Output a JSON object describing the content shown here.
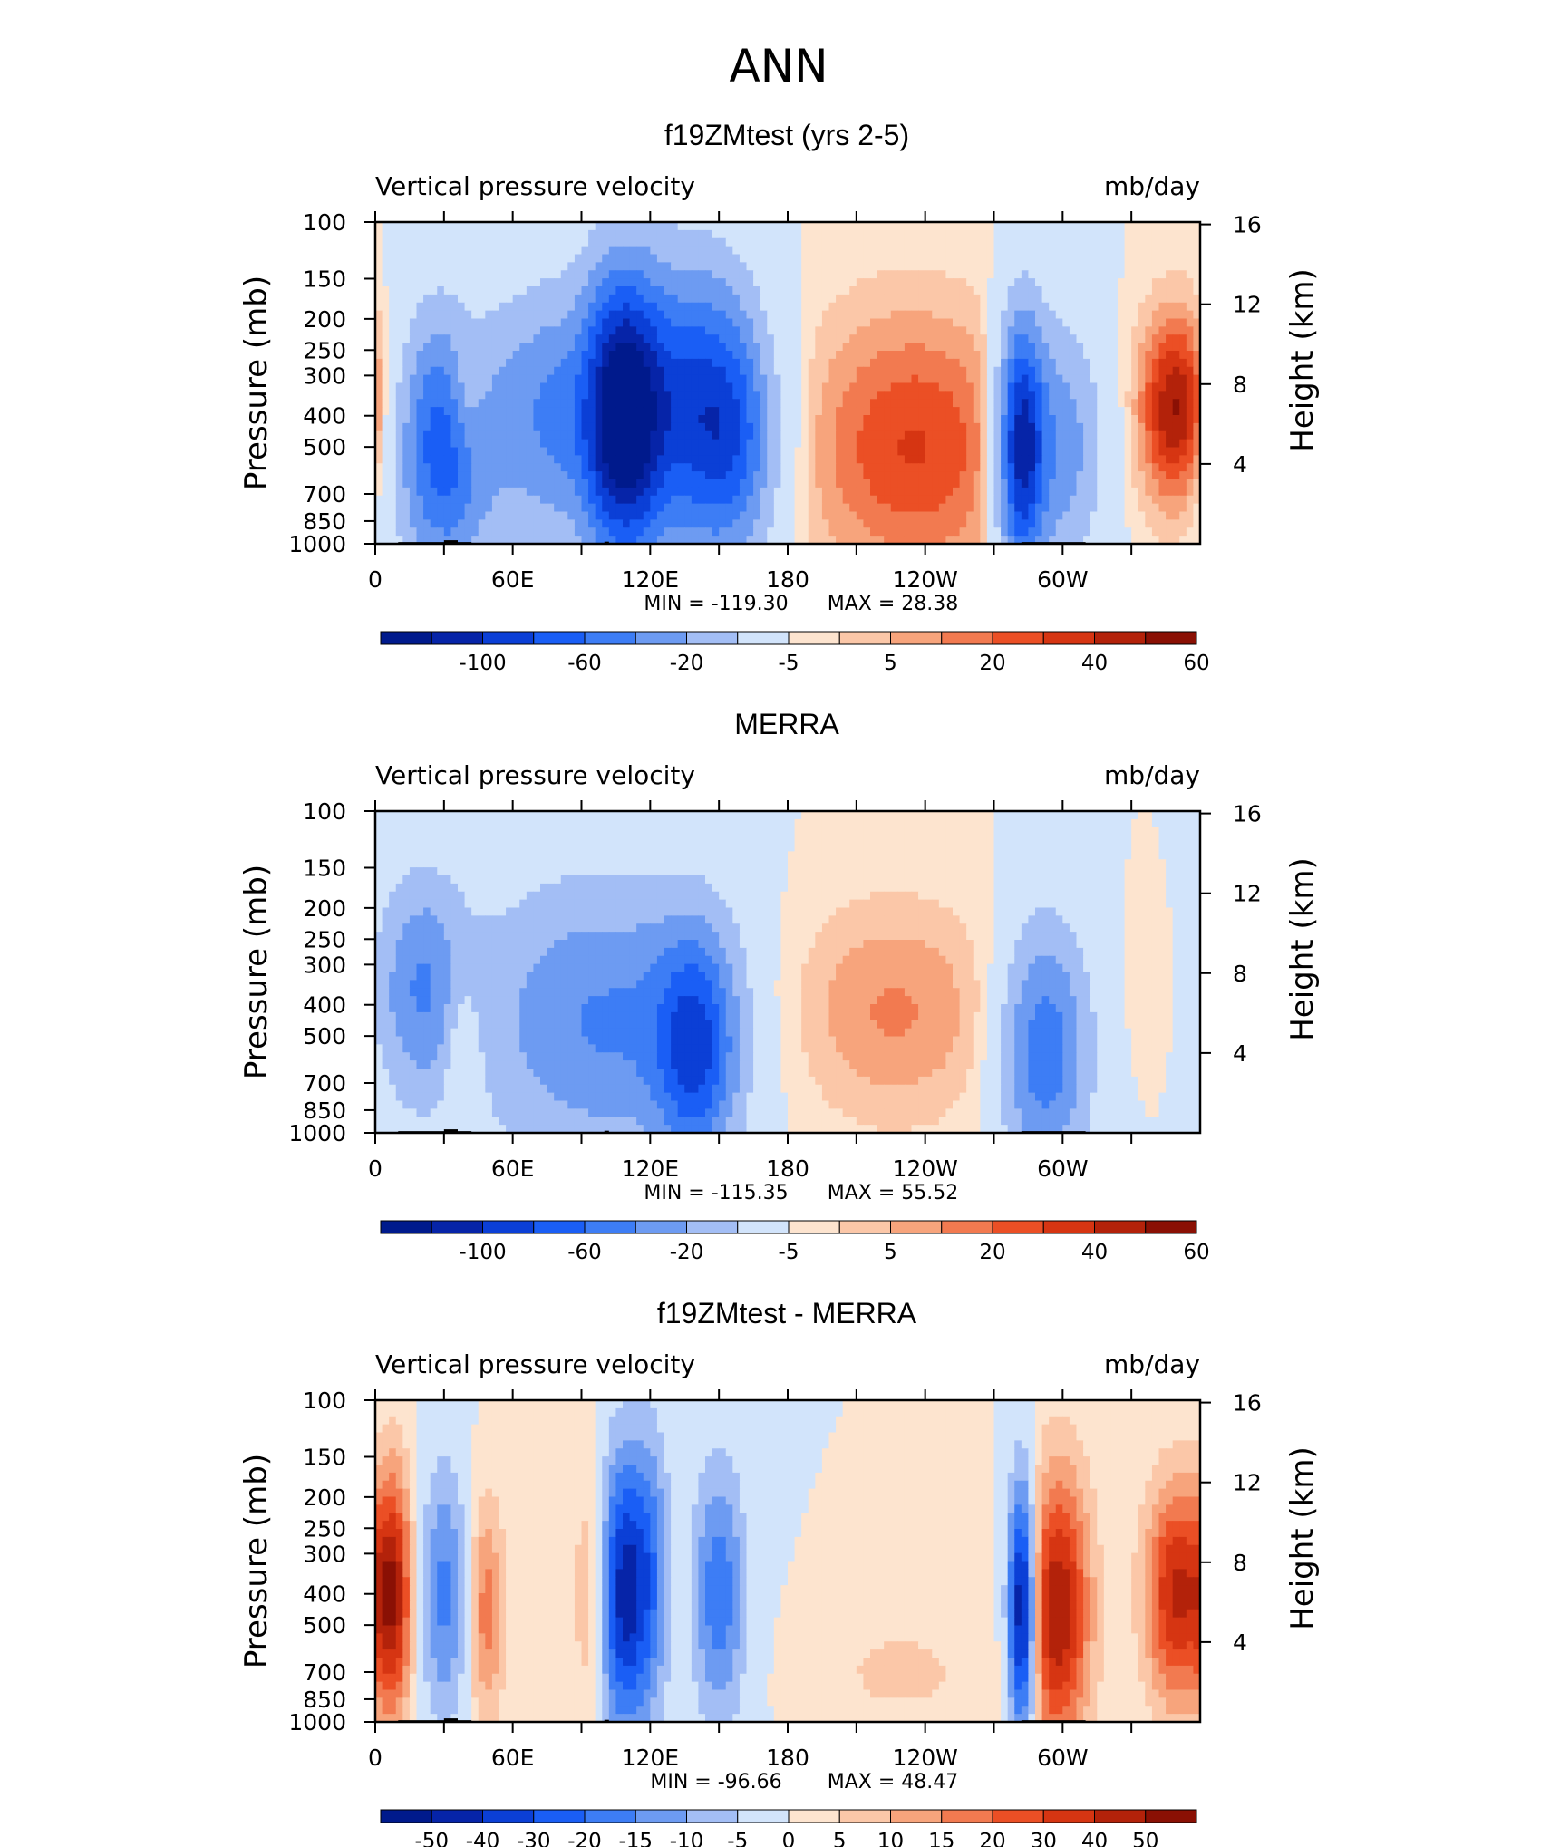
{
  "figure_title": "ANN",
  "chart_data": [
    {
      "type": "heatmap",
      "title": "f19ZMtest (yrs 2-5)",
      "subtitle_left": "Vertical pressure velocity",
      "subtitle_right": "mb/day",
      "ylabel": "Pressure (mb)",
      "ylabel_right": "Height (km)",
      "x_tick_labels": [
        "0",
        "60E",
        "120E",
        "180",
        "120W",
        "60W"
      ],
      "y_tick_labels": [
        "100",
        "150",
        "200",
        "250",
        "300",
        "400",
        "500",
        "700",
        "850",
        "1000"
      ],
      "y_right_tick_labels": [
        "16",
        "12",
        "8",
        "4"
      ],
      "min_label": "MIN = -119.30",
      "max_label": "MAX = 28.38",
      "colorbar_labels": [
        "-100",
        "-60",
        "-20",
        "-5",
        "5",
        "20",
        "40",
        "60"
      ],
      "colorbar_colors": [
        "#001a8c",
        "#0624a8",
        "#0b3fd6",
        "#1a5ef5",
        "#3d7df5",
        "#6d9bf2",
        "#a3bef5",
        "#d2e4fb",
        "#fde4cf",
        "#fbc7a8",
        "#f7a47c",
        "#f27a50",
        "#eb4f25",
        "#d63512",
        "#b3220a",
        "#8a1004"
      ],
      "min_value": -119.3,
      "max_value": 28.38
    },
    {
      "type": "heatmap",
      "title": "MERRA",
      "subtitle_left": "Vertical pressure velocity",
      "subtitle_right": "mb/day",
      "ylabel": "Pressure (mb)",
      "ylabel_right": "Height (km)",
      "x_tick_labels": [
        "0",
        "60E",
        "120E",
        "180",
        "120W",
        "60W"
      ],
      "y_tick_labels": [
        "100",
        "150",
        "200",
        "250",
        "300",
        "400",
        "500",
        "700",
        "850",
        "1000"
      ],
      "y_right_tick_labels": [
        "16",
        "12",
        "8",
        "4"
      ],
      "min_label": "MIN = -115.35",
      "max_label": "MAX = 55.52",
      "colorbar_labels": [
        "-100",
        "-60",
        "-20",
        "-5",
        "5",
        "20",
        "40",
        "60"
      ],
      "colorbar_colors": [
        "#001a8c",
        "#0624a8",
        "#0b3fd6",
        "#1a5ef5",
        "#3d7df5",
        "#6d9bf2",
        "#a3bef5",
        "#d2e4fb",
        "#fde4cf",
        "#fbc7a8",
        "#f7a47c",
        "#f27a50",
        "#eb4f25",
        "#d63512",
        "#b3220a",
        "#8a1004"
      ],
      "min_value": -115.35,
      "max_value": 55.52
    },
    {
      "type": "heatmap",
      "title": "f19ZMtest - MERRA",
      "subtitle_left": "Vertical pressure velocity",
      "subtitle_right": "mb/day",
      "ylabel": "Pressure (mb)",
      "ylabel_right": "Height (km)",
      "x_tick_labels": [
        "0",
        "60E",
        "120E",
        "180",
        "120W",
        "60W"
      ],
      "y_tick_labels": [
        "100",
        "150",
        "200",
        "250",
        "300",
        "400",
        "500",
        "700",
        "850",
        "1000"
      ],
      "y_right_tick_labels": [
        "16",
        "12",
        "8",
        "4"
      ],
      "min_label": "MIN = -96.66",
      "max_label": "MAX = 48.47",
      "colorbar_labels": [
        "-50",
        "-40",
        "-30",
        "-20",
        "-15",
        "-10",
        "-5",
        "0",
        "5",
        "10",
        "15",
        "20",
        "30",
        "40",
        "50"
      ],
      "colorbar_colors": [
        "#001a8c",
        "#0624a8",
        "#0b3fd6",
        "#1a5ef5",
        "#3d7df5",
        "#6d9bf2",
        "#a3bef5",
        "#d2e4fb",
        "#fde4cf",
        "#fbc7a8",
        "#f7a47c",
        "#f27a50",
        "#eb4f25",
        "#d63512",
        "#b3220a",
        "#8a1004"
      ],
      "min_value": -96.66,
      "max_value": 48.47
    }
  ]
}
